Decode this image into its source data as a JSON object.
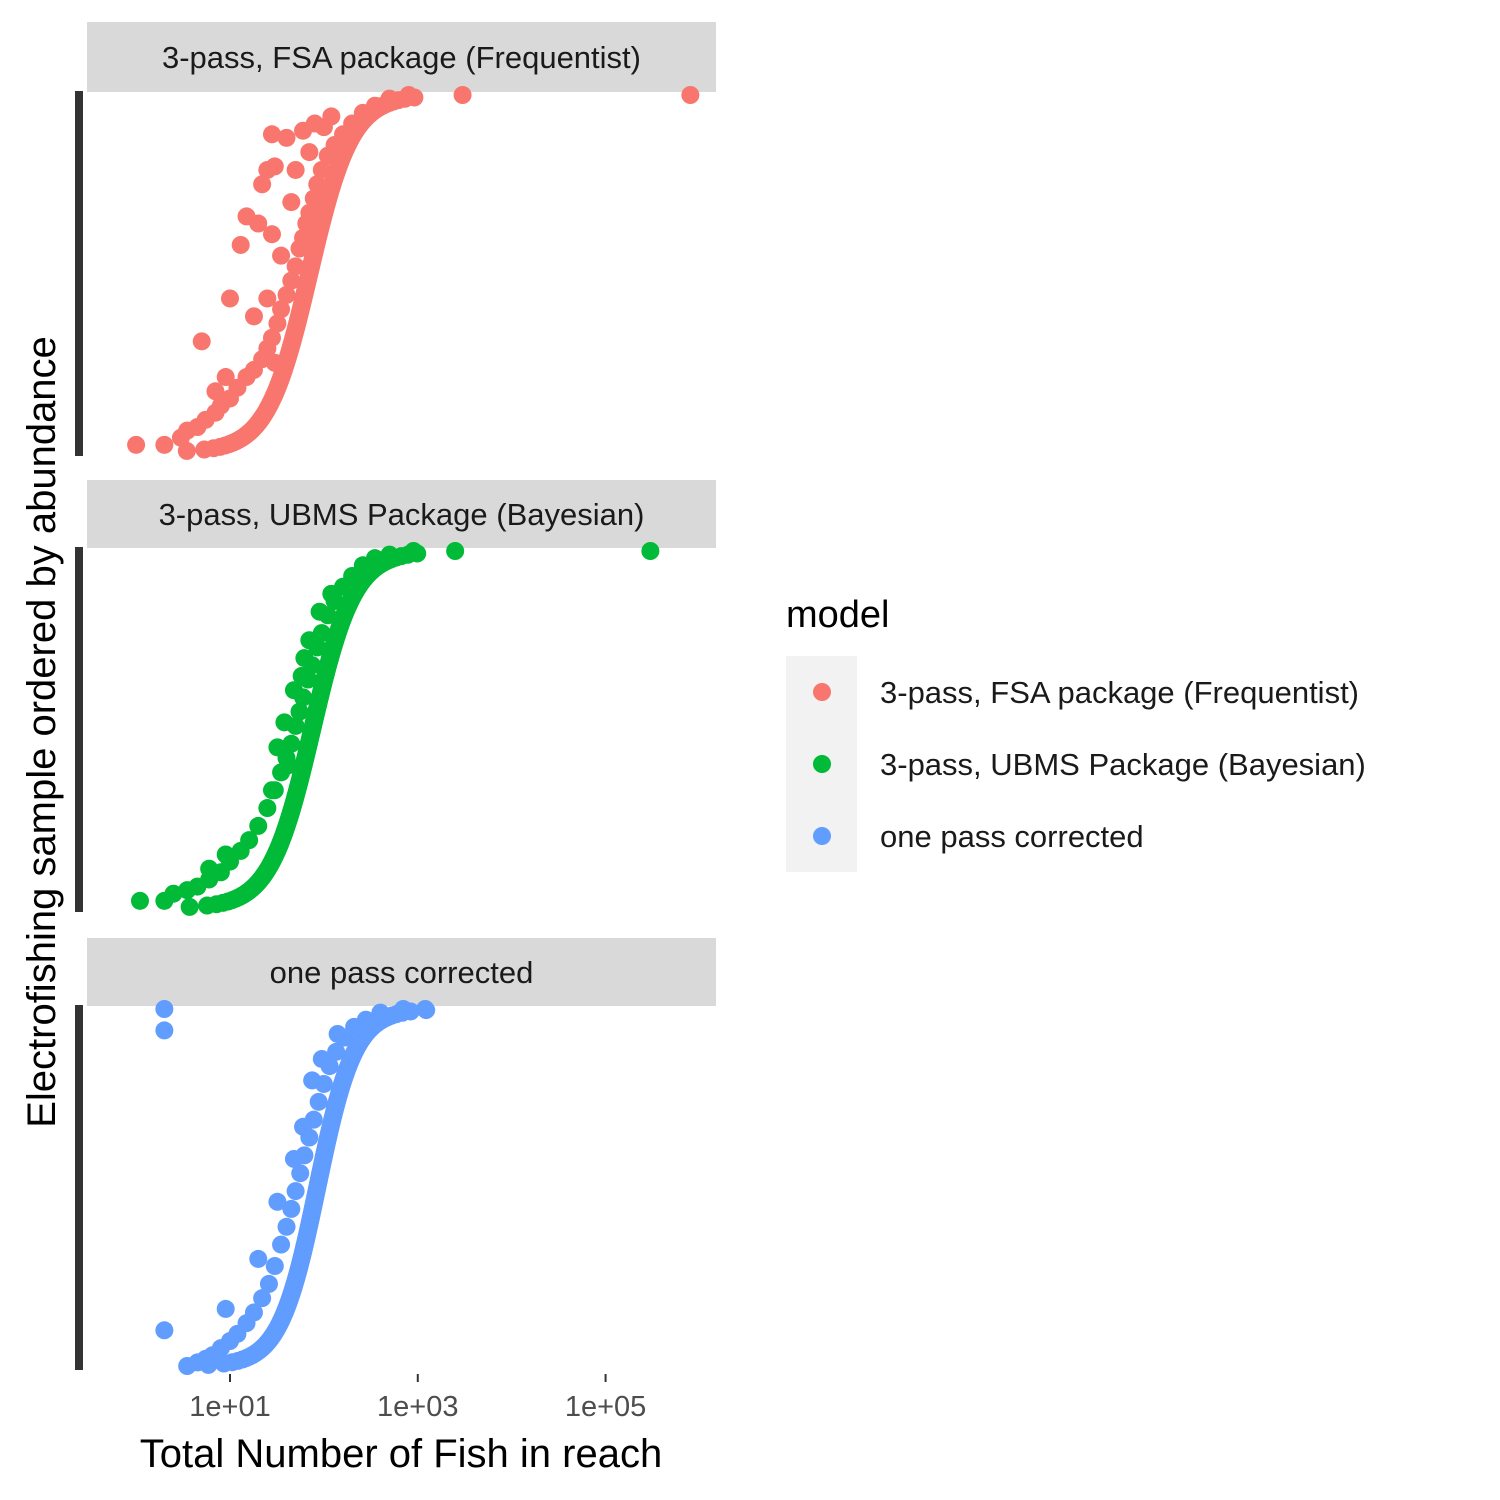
{
  "chart_data": {
    "type": "scatter",
    "xscale": "log10",
    "xlim": [
      0.3,
      1500000
    ],
    "xticks": [
      10,
      1000,
      100000
    ],
    "xtick_labels": [
      "1e+01",
      "1e+03",
      "1e+05"
    ],
    "xlabel": "Total Number of Fish in reach",
    "ylabel": "Electrofishing sample ordered by abundance",
    "ylim": [
      0,
      1
    ],
    "grid": false,
    "legend": {
      "title": "model",
      "placement": "right",
      "items": [
        {
          "label": "3-pass, FSA package (Frequentist)",
          "color": "#F8766D"
        },
        {
          "label": "3-pass, UBMS Package (Bayesian)",
          "color": "#00BA38"
        },
        {
          "label": "one pass corrected",
          "color": "#619CFF"
        }
      ]
    },
    "panels": [
      {
        "strip": "3-pass, FSA package (Frequentist)",
        "color": "#F8766D",
        "curve": {
          "center": 70,
          "spread": 0.45
        },
        "points": [
          {
            "x": 1.0,
            "y": 0.02
          },
          {
            "x": 2.0,
            "y": 0.02
          },
          {
            "x": 3.0,
            "y": 0.04
          },
          {
            "x": 3.5,
            "y": 0.06
          },
          {
            "x": 4.5,
            "y": 0.07
          },
          {
            "x": 5.5,
            "y": 0.09
          },
          {
            "x": 7.0,
            "y": 0.11
          },
          {
            "x": 8.0,
            "y": 0.13
          },
          {
            "x": 10,
            "y": 0.15
          },
          {
            "x": 12,
            "y": 0.18
          },
          {
            "x": 15,
            "y": 0.21
          },
          {
            "x": 18,
            "y": 0.23
          },
          {
            "x": 22,
            "y": 0.26
          },
          {
            "x": 25,
            "y": 0.29
          },
          {
            "x": 28,
            "y": 0.32
          },
          {
            "x": 32,
            "y": 0.36
          },
          {
            "x": 35,
            "y": 0.4
          },
          {
            "x": 40,
            "y": 0.44
          },
          {
            "x": 45,
            "y": 0.48
          },
          {
            "x": 50,
            "y": 0.52
          },
          {
            "x": 55,
            "y": 0.57
          },
          {
            "x": 60,
            "y": 0.6
          },
          {
            "x": 65,
            "y": 0.64
          },
          {
            "x": 70,
            "y": 0.67
          },
          {
            "x": 78,
            "y": 0.71
          },
          {
            "x": 85,
            "y": 0.75
          },
          {
            "x": 95,
            "y": 0.79
          },
          {
            "x": 110,
            "y": 0.83
          },
          {
            "x": 130,
            "y": 0.86
          },
          {
            "x": 160,
            "y": 0.89
          },
          {
            "x": 200,
            "y": 0.92
          },
          {
            "x": 260,
            "y": 0.95
          },
          {
            "x": 350,
            "y": 0.97
          },
          {
            "x": 500,
            "y": 0.99
          },
          {
            "x": 800,
            "y": 1.0
          },
          {
            "x": 3000,
            "y": 1.0
          },
          {
            "x": 800000,
            "y": 1.0
          },
          {
            "x": 5,
            "y": 0.31
          },
          {
            "x": 10,
            "y": 0.43
          },
          {
            "x": 13,
            "y": 0.58
          },
          {
            "x": 15,
            "y": 0.66
          },
          {
            "x": 20,
            "y": 0.64
          },
          {
            "x": 22,
            "y": 0.75
          },
          {
            "x": 25,
            "y": 0.79
          },
          {
            "x": 28,
            "y": 0.89
          },
          {
            "x": 40,
            "y": 0.88
          },
          {
            "x": 50,
            "y": 0.79
          },
          {
            "x": 60,
            "y": 0.9
          },
          {
            "x": 70,
            "y": 0.84
          },
          {
            "x": 80,
            "y": 0.92
          },
          {
            "x": 100,
            "y": 0.91
          },
          {
            "x": 120,
            "y": 0.94
          },
          {
            "x": 7,
            "y": 0.17
          },
          {
            "x": 9,
            "y": 0.21
          },
          {
            "x": 18,
            "y": 0.38
          },
          {
            "x": 30,
            "y": 0.25
          },
          {
            "x": 35,
            "y": 0.55
          },
          {
            "x": 45,
            "y": 0.7
          },
          {
            "x": 30,
            "y": 0.8
          },
          {
            "x": 28,
            "y": 0.61
          },
          {
            "x": 25,
            "y": 0.43
          }
        ]
      },
      {
        "strip": "3-pass, UBMS Package (Bayesian)",
        "color": "#00BA38",
        "curve": {
          "center": 75,
          "spread": 0.45
        },
        "points": [
          {
            "x": 1.1,
            "y": 0.02
          },
          {
            "x": 2.0,
            "y": 0.02
          },
          {
            "x": 2.5,
            "y": 0.04
          },
          {
            "x": 3.5,
            "y": 0.05
          },
          {
            "x": 4.5,
            "y": 0.06
          },
          {
            "x": 6.0,
            "y": 0.08
          },
          {
            "x": 8.0,
            "y": 0.1
          },
          {
            "x": 10,
            "y": 0.13
          },
          {
            "x": 13,
            "y": 0.16
          },
          {
            "x": 16,
            "y": 0.19
          },
          {
            "x": 20,
            "y": 0.23
          },
          {
            "x": 25,
            "y": 0.28
          },
          {
            "x": 30,
            "y": 0.33
          },
          {
            "x": 35,
            "y": 0.38
          },
          {
            "x": 40,
            "y": 0.42
          },
          {
            "x": 45,
            "y": 0.46
          },
          {
            "x": 50,
            "y": 0.51
          },
          {
            "x": 55,
            "y": 0.55
          },
          {
            "x": 60,
            "y": 0.59
          },
          {
            "x": 68,
            "y": 0.64
          },
          {
            "x": 75,
            "y": 0.68
          },
          {
            "x": 85,
            "y": 0.73
          },
          {
            "x": 95,
            "y": 0.77
          },
          {
            "x": 110,
            "y": 0.82
          },
          {
            "x": 130,
            "y": 0.86
          },
          {
            "x": 160,
            "y": 0.9
          },
          {
            "x": 200,
            "y": 0.93
          },
          {
            "x": 260,
            "y": 0.96
          },
          {
            "x": 350,
            "y": 0.98
          },
          {
            "x": 500,
            "y": 0.99
          },
          {
            "x": 900,
            "y": 1.0
          },
          {
            "x": 2500,
            "y": 1.0
          },
          {
            "x": 300000,
            "y": 1.0
          },
          {
            "x": 6,
            "y": 0.11
          },
          {
            "x": 9,
            "y": 0.15
          },
          {
            "x": 28,
            "y": 0.33
          },
          {
            "x": 32,
            "y": 0.45
          },
          {
            "x": 38,
            "y": 0.52
          },
          {
            "x": 48,
            "y": 0.61
          },
          {
            "x": 58,
            "y": 0.65
          },
          {
            "x": 70,
            "y": 0.75
          },
          {
            "x": 90,
            "y": 0.83
          },
          {
            "x": 120,
            "y": 0.88
          },
          {
            "x": 42,
            "y": 0.4
          },
          {
            "x": 62,
            "y": 0.7
          }
        ]
      },
      {
        "strip": "one pass corrected",
        "color": "#619CFF",
        "curve": {
          "center": 85,
          "spread": 0.4
        },
        "points": [
          {
            "x": 3.5,
            "y": 0.0
          },
          {
            "x": 4.5,
            "y": 0.01
          },
          {
            "x": 5.5,
            "y": 0.02
          },
          {
            "x": 6.5,
            "y": 0.03
          },
          {
            "x": 8.0,
            "y": 0.05
          },
          {
            "x": 10,
            "y": 0.07
          },
          {
            "x": 12,
            "y": 0.09
          },
          {
            "x": 15,
            "y": 0.12
          },
          {
            "x": 18,
            "y": 0.15
          },
          {
            "x": 22,
            "y": 0.19
          },
          {
            "x": 26,
            "y": 0.23
          },
          {
            "x": 30,
            "y": 0.28
          },
          {
            "x": 35,
            "y": 0.34
          },
          {
            "x": 40,
            "y": 0.39
          },
          {
            "x": 45,
            "y": 0.44
          },
          {
            "x": 50,
            "y": 0.49
          },
          {
            "x": 56,
            "y": 0.54
          },
          {
            "x": 62,
            "y": 0.59
          },
          {
            "x": 70,
            "y": 0.64
          },
          {
            "x": 78,
            "y": 0.69
          },
          {
            "x": 88,
            "y": 0.74
          },
          {
            "x": 100,
            "y": 0.79
          },
          {
            "x": 115,
            "y": 0.84
          },
          {
            "x": 135,
            "y": 0.88
          },
          {
            "x": 165,
            "y": 0.92
          },
          {
            "x": 210,
            "y": 0.95
          },
          {
            "x": 280,
            "y": 0.97
          },
          {
            "x": 400,
            "y": 0.99
          },
          {
            "x": 700,
            "y": 1.0
          },
          {
            "x": 1200,
            "y": 1.0
          },
          {
            "x": 2,
            "y": 1.0
          },
          {
            "x": 2,
            "y": 0.94
          },
          {
            "x": 2,
            "y": 0.1
          },
          {
            "x": 9,
            "y": 0.16
          },
          {
            "x": 20,
            "y": 0.3
          },
          {
            "x": 32,
            "y": 0.46
          },
          {
            "x": 48,
            "y": 0.58
          },
          {
            "x": 60,
            "y": 0.67
          },
          {
            "x": 75,
            "y": 0.8
          },
          {
            "x": 95,
            "y": 0.86
          },
          {
            "x": 140,
            "y": 0.93
          }
        ]
      }
    ]
  }
}
